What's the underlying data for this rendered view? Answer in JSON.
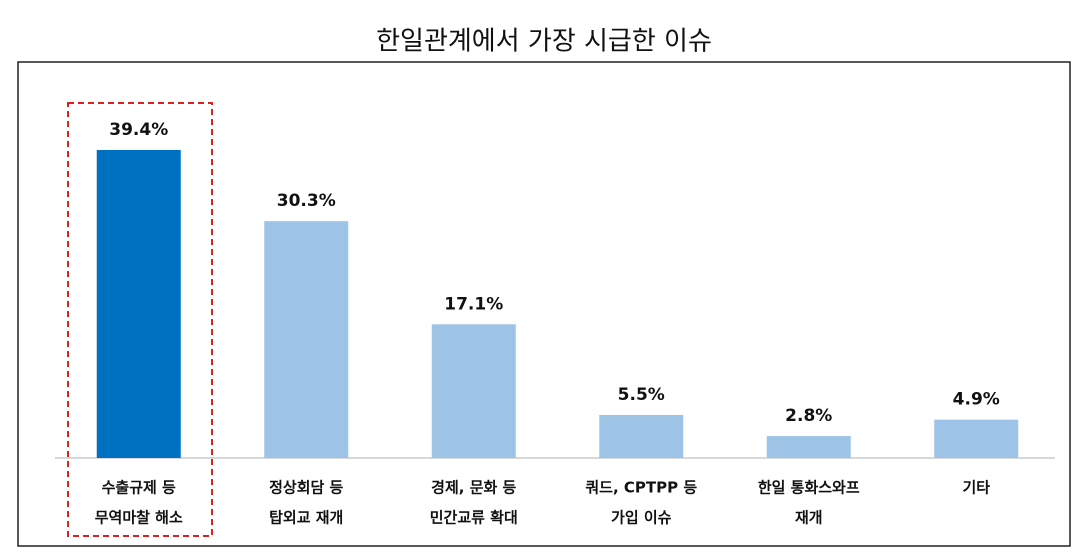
{
  "chart_data": {
    "type": "bar",
    "title": "한일관계에서 가장 시급한 이슈",
    "categories": [
      [
        "수출규제 등",
        "무역마찰 해소"
      ],
      [
        "정상회담 등",
        "탑외교 재개"
      ],
      [
        "경제, 문화 등",
        "민간교류 확대"
      ],
      [
        "쿼드, CPTPP 등",
        "가입 이슈"
      ],
      [
        "한일 통화스와프",
        "재개"
      ],
      [
        "기타"
      ]
    ],
    "values": [
      39.4,
      30.3,
      17.1,
      5.5,
      2.8,
      4.9
    ],
    "value_labels": [
      "39.4%",
      "30.3%",
      "17.1%",
      "5.5%",
      "2.8%",
      "4.9%"
    ],
    "colors": [
      "#0070c0",
      "#9dc3e6",
      "#9dc3e6",
      "#9dc3e6",
      "#9dc3e6",
      "#9dc3e6"
    ]
  }
}
